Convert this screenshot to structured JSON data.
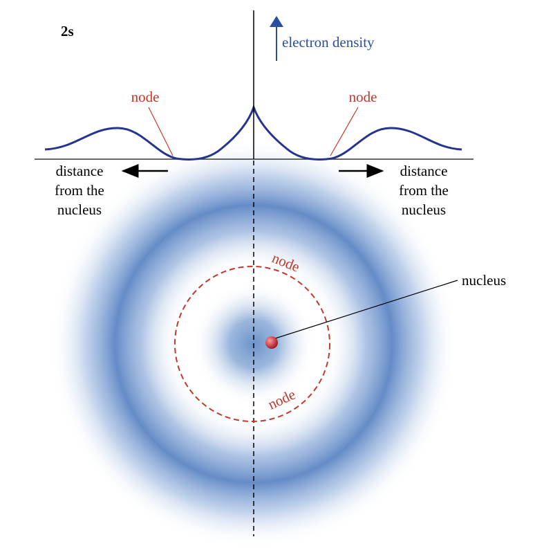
{
  "orbital": "2s",
  "axis_label": "electron density",
  "curve_nodes": [
    "node",
    "node"
  ],
  "distance_labels": [
    [
      "distance",
      "from the",
      "nucleus"
    ],
    [
      "distance",
      "from the",
      "nucleus"
    ]
  ],
  "circle_nodes": [
    "node",
    "node"
  ],
  "nucleus_label": "nucleus"
}
